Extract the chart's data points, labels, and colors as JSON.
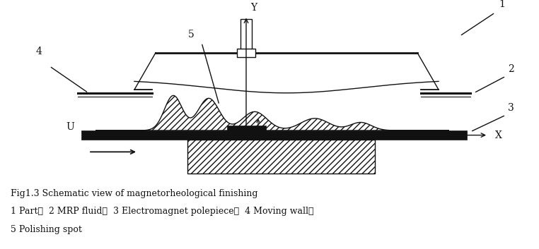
{
  "fig_width": 7.62,
  "fig_height": 3.53,
  "dpi": 100,
  "bg_color": "#ffffff",
  "caption_line1": "Fig1.3 Schematic view of magnetorheological finishing",
  "caption_line2": "1 Part；  2 MRP fluid；  3 Electromagnet polepiece；  4 Moving wall；",
  "caption_line3": "5 Polishing spot",
  "label_1": "1",
  "label_2": "2",
  "label_3": "3",
  "label_4": "4",
  "label_5": "5",
  "label_U": "U",
  "label_X": "X",
  "label_Y": "Y"
}
